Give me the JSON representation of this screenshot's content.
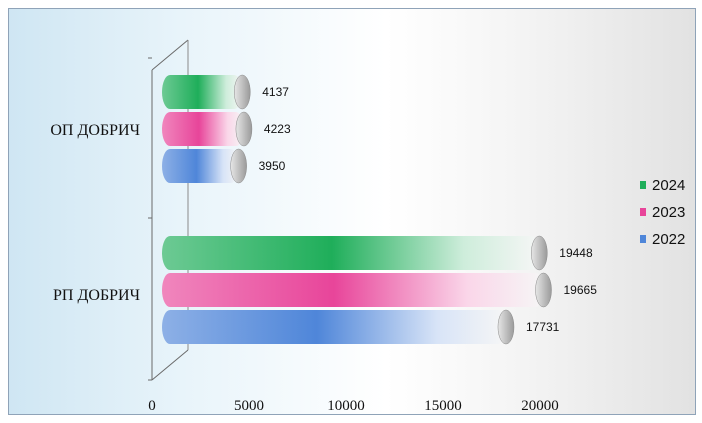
{
  "chart_data": {
    "type": "bar",
    "orientation": "horizontal",
    "categories": [
      "ОП ДОБРИЧ",
      "РП ДОБРИЧ"
    ],
    "series": [
      {
        "name": "2024",
        "values": [
          4137,
          19448
        ],
        "color": "#1fae5a"
      },
      {
        "name": "2023",
        "values": [
          4223,
          19665
        ],
        "color": "#e8459a"
      },
      {
        "name": "2022",
        "values": [
          3950,
          17731
        ],
        "color": "#4f86d9"
      }
    ],
    "xlim": [
      0,
      20000
    ],
    "x_ticks": [
      "0",
      "5000",
      "10000",
      "15000",
      "20000"
    ],
    "legend_position": "right",
    "style": "3d-cylinder",
    "grid": false
  }
}
